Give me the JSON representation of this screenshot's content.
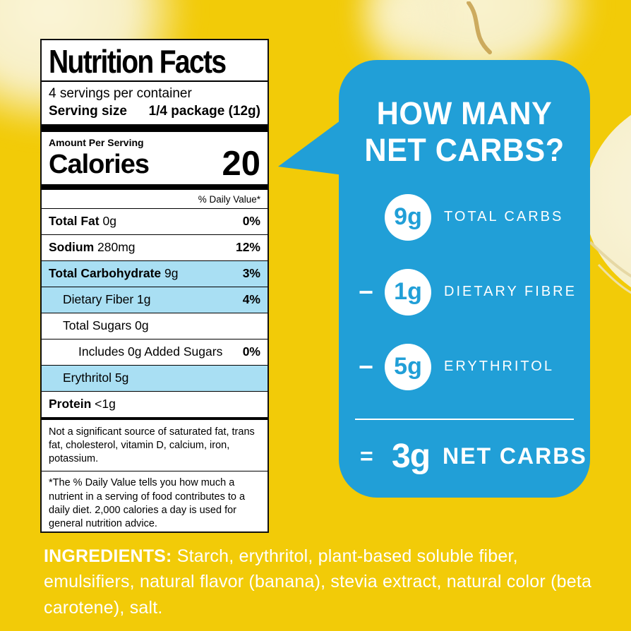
{
  "colors": {
    "background": "#F2CB08",
    "bubble_blue": "#219FD7",
    "highlight_blue": "#A9DFF3",
    "banana_cream": "#F7EFC5",
    "label_text": "#000000",
    "bubble_text": "#FFFFFF"
  },
  "nutrition_label": {
    "title": "Nutrition Facts",
    "servings_per_container": "4 servings per container",
    "serving_size_label": "Serving size",
    "serving_size_value": "1/4 package (12g)",
    "amount_per_serving": "Amount Per Serving",
    "calories_label": "Calories",
    "calories_value": "20",
    "daily_value_header": "% Daily Value*",
    "rows": [
      {
        "name": "Total Fat",
        "amount": "0g",
        "dv": "0%",
        "bold": true,
        "indent": 0,
        "highlight": false
      },
      {
        "name": "Sodium",
        "amount": "280mg",
        "dv": "12%",
        "bold": true,
        "indent": 0,
        "highlight": false
      },
      {
        "name": "Total Carbohydrate",
        "amount": "9g",
        "dv": "3%",
        "bold": true,
        "indent": 0,
        "highlight": true
      },
      {
        "name": "Dietary Fiber",
        "amount": "1g",
        "dv": "4%",
        "bold": false,
        "indent": 1,
        "highlight": true
      },
      {
        "name": "Total Sugars",
        "amount": "0g",
        "dv": "",
        "bold": false,
        "indent": 1,
        "highlight": false
      },
      {
        "name": "Includes 0g Added Sugars",
        "amount": "",
        "dv": "0%",
        "bold": false,
        "indent": 2,
        "highlight": false
      },
      {
        "name": "Erythritol",
        "amount": "5g",
        "dv": "",
        "bold": false,
        "indent": 1,
        "highlight": true
      },
      {
        "name": "Protein",
        "amount": "<1g",
        "dv": "",
        "bold": true,
        "indent": 0,
        "highlight": false
      }
    ],
    "not_significant": "Not a significant source of saturated fat, trans fat, cholesterol, vitamin D, calcium, iron, potassium.",
    "footnote": "*The % Daily Value tells you how much a nutrient in a serving of food contributes to a daily diet. 2,000 calories a day is used for general nutrition advice."
  },
  "bubble": {
    "headline_line1": "HOW MANY",
    "headline_line2": "NET CARBS?",
    "rows": [
      {
        "operator": "",
        "value": "9g",
        "label": "TOTAL CARBS"
      },
      {
        "operator": "−",
        "value": "1g",
        "label": "DIETARY FIBRE"
      },
      {
        "operator": "−",
        "value": "5g",
        "label": "ERYTHRITOL"
      }
    ],
    "equals_sign": "=",
    "result_value": "3g",
    "result_label": "NET CARBS"
  },
  "ingredients": {
    "heading": "INGREDIENTS:",
    "text": "Starch, erythritol, plant-based soluble fiber, emulsifiers, natural flavor (banana), stevia extract, natural color (beta carotene), salt."
  }
}
